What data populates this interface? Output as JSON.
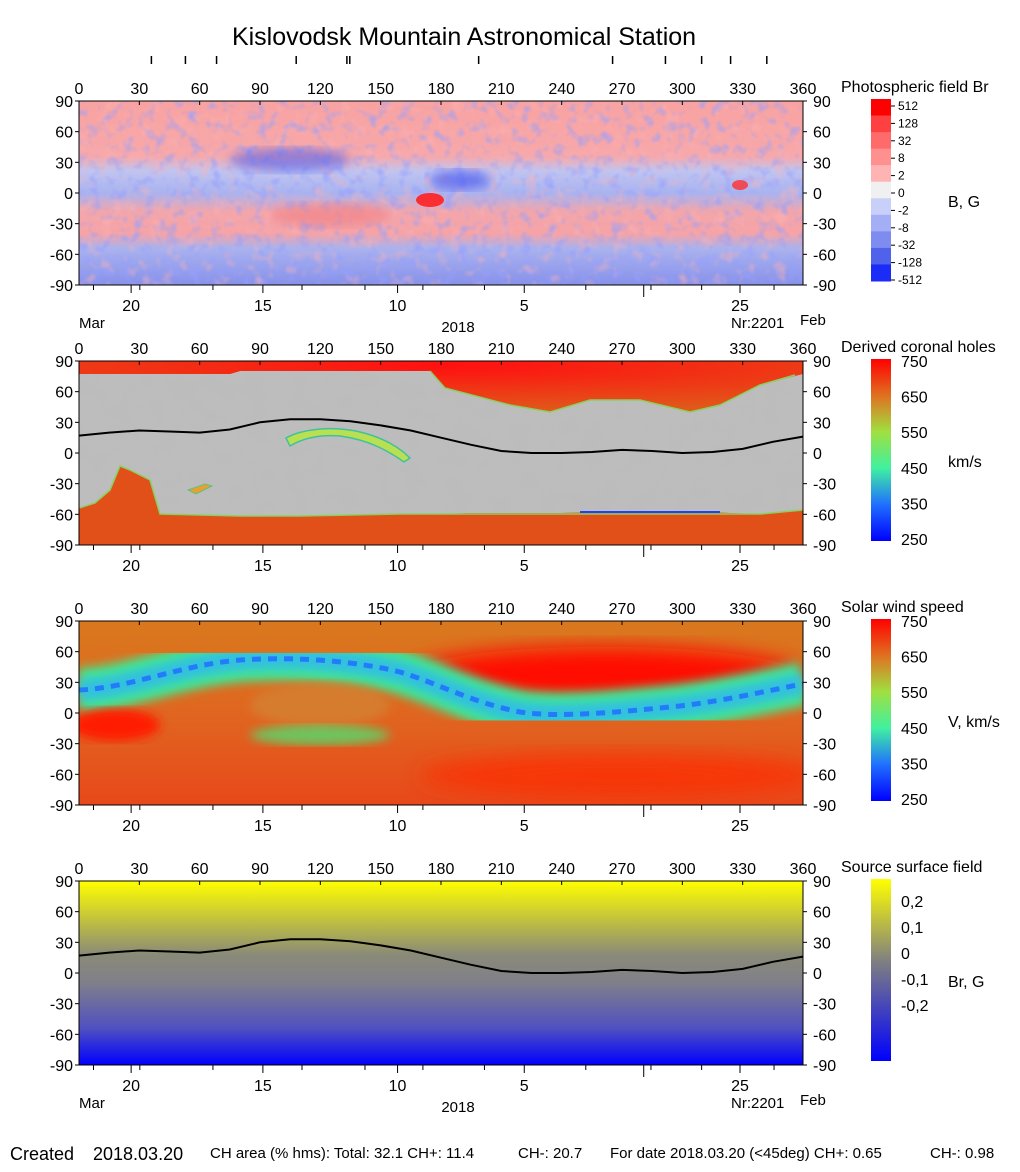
{
  "title": "Kislovodsk Mountain Astronomical Station",
  "footer": {
    "created_label": "Created",
    "created_date": "2018.03.20",
    "ch_area": "CH area (% hms): Total: 32.1 CH+: 11.4",
    "ch_minus": "CH-: 20.7",
    "for_date": "For date 2018.03.20 (<45deg) CH+: 0.65",
    "ch_minus_date": "CH-: 0.98"
  },
  "axes": {
    "lon_ticks": [
      "0",
      "30",
      "60",
      "90",
      "120",
      "150",
      "180",
      "210",
      "240",
      "270",
      "300",
      "330",
      "360"
    ],
    "lat_ticks": [
      "90",
      "60",
      "30",
      "0",
      "-30",
      "-60",
      "-90"
    ],
    "date_ticks": [
      "20",
      "15",
      "10",
      "5",
      "25"
    ],
    "month_left": "Mar",
    "month_right": "Feb",
    "year": "2018",
    "rotation": "Nr:2201"
  },
  "panels": [
    {
      "title": "Photospheric field Br",
      "unit": "B, G",
      "scale_labels": [
        "512",
        "128",
        "32",
        "8",
        "2",
        "0",
        "-2",
        "-8",
        "-32",
        "-128",
        "-512"
      ]
    },
    {
      "title": "Derived coronal holes",
      "unit": "km/s",
      "scale_labels": [
        "750",
        "650",
        "550",
        "450",
        "350",
        "250"
      ]
    },
    {
      "title": "Solar wind speed",
      "unit": "V, km/s",
      "scale_labels": [
        "750",
        "650",
        "550",
        "450",
        "350",
        "250"
      ]
    },
    {
      "title": "Source surface field",
      "unit": "Br, G",
      "scale_labels": [
        "0,2",
        "0,1",
        "0",
        "-0,1",
        "-0,2"
      ]
    }
  ],
  "colors": {
    "positive": "#ff2020",
    "negative": "#2040ff",
    "ch_gray": "#bdbdbd",
    "ch_dark": "#808080",
    "wind_fast": "#ff2000",
    "wind_slow": "#1040ff",
    "ss_positive": "#ffff00",
    "ss_negative": "#0000ff"
  },
  "chart_data": {
    "type": "heatmap",
    "title": "Kislovodsk Mountain Astronomical Station",
    "xlabel": "",
    "ylabel": "",
    "xlim": [
      0,
      360
    ],
    "ylim": [
      -90,
      90
    ],
    "neutral_line": {
      "x": [
        0,
        15,
        30,
        45,
        60,
        75,
        90,
        105,
        120,
        135,
        150,
        165,
        180,
        195,
        210,
        225,
        240,
        255,
        270,
        285,
        300,
        315,
        330,
        345,
        360
      ],
      "y": [
        17,
        20,
        22,
        21,
        20,
        23,
        30,
        33,
        33,
        31,
        27,
        22,
        15,
        8,
        2,
        0,
        0,
        1,
        3,
        2,
        0,
        1,
        4,
        11,
        16
      ]
    }
  }
}
